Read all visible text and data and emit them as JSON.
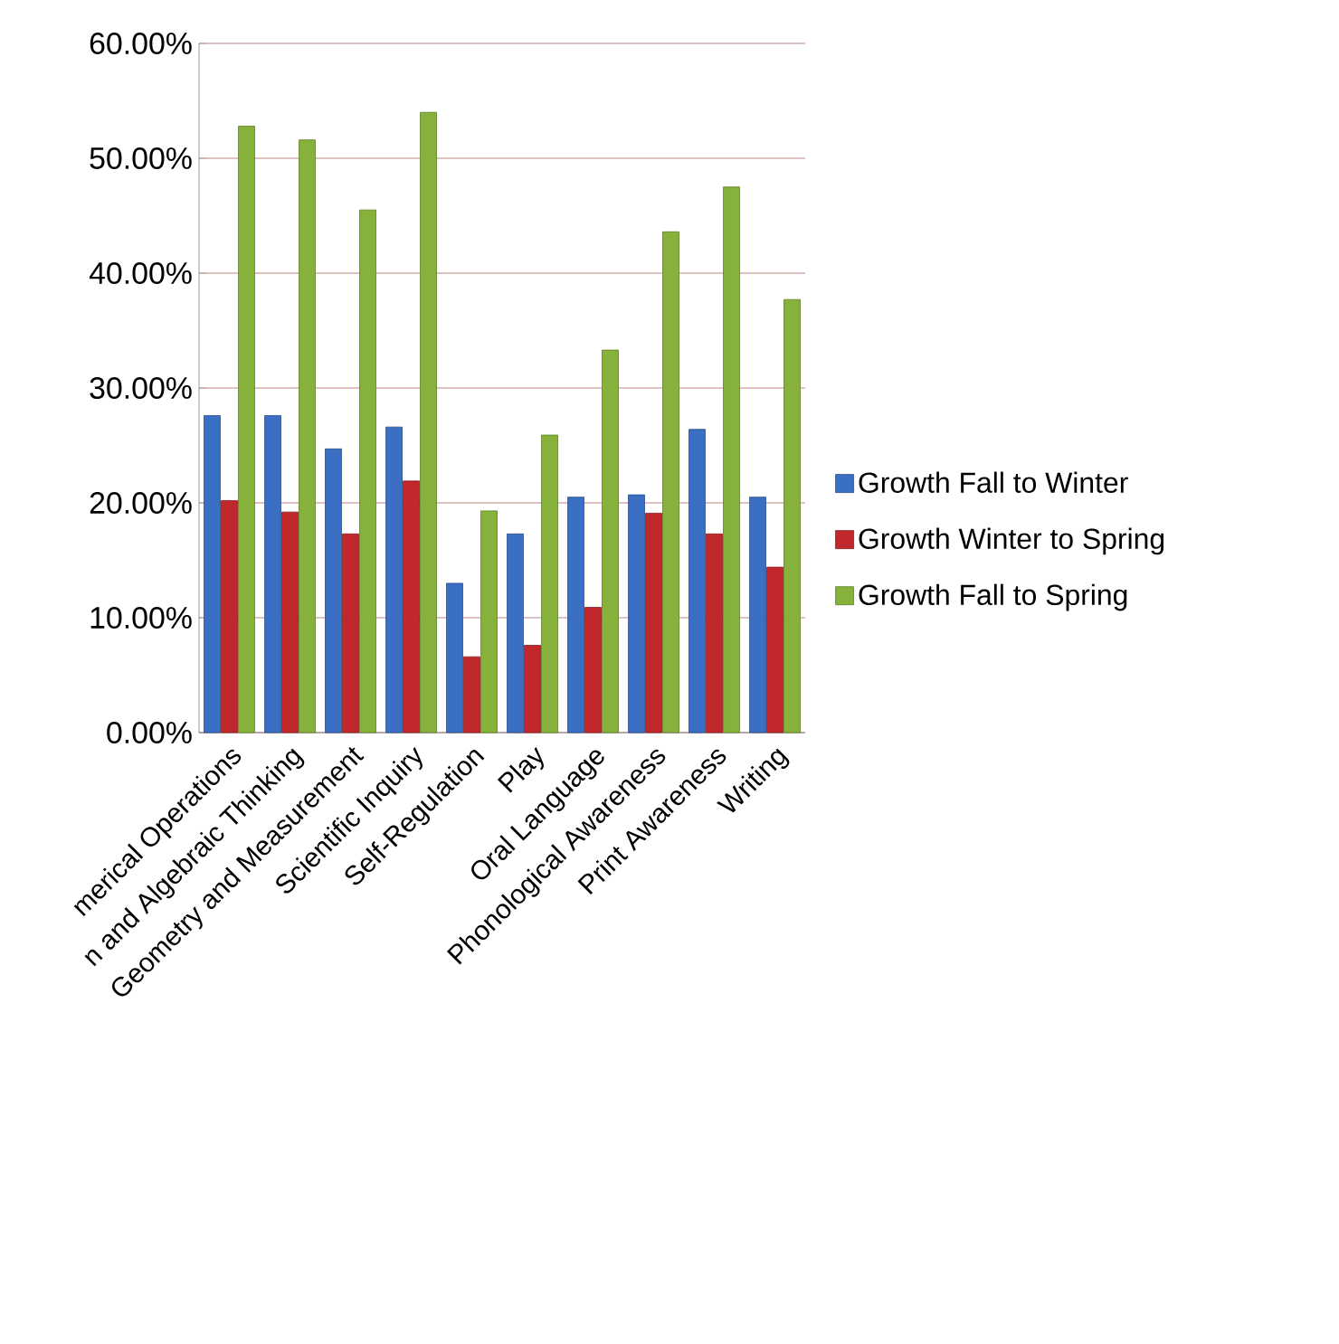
{
  "chart_data": {
    "type": "bar",
    "categories": [
      "merical Operations",
      "n and Algebraic Thinking",
      "Geometry and Measurement",
      "Scientific Inquiry",
      "Self-Regulation",
      "Play",
      "Oral Language",
      "Phonological Awareness",
      "Print Awareness",
      "Writing"
    ],
    "series": [
      {
        "name": "Growth Fall to Winter",
        "color": "#3a6fc4",
        "values": [
          27.6,
          27.6,
          24.7,
          26.6,
          13.0,
          17.3,
          20.5,
          20.7,
          26.4,
          20.5
        ]
      },
      {
        "name": "Growth Winter to Spring",
        "color": "#c0282c",
        "values": [
          20.2,
          19.2,
          17.3,
          21.9,
          6.6,
          7.6,
          10.9,
          19.1,
          17.3,
          14.4
        ]
      },
      {
        "name": "Growth Fall to Spring",
        "color": "#86b13a",
        "values": [
          52.8,
          51.6,
          45.5,
          54.0,
          19.3,
          25.9,
          33.3,
          43.6,
          47.5,
          37.7
        ]
      }
    ],
    "ylim": [
      0,
      60
    ],
    "yticks": [
      {
        "value": 0,
        "label": "0.00%"
      },
      {
        "value": 10,
        "label": "10.00%"
      },
      {
        "value": 20,
        "label": "20.00%"
      },
      {
        "value": 30,
        "label": "30.00%"
      },
      {
        "value": 40,
        "label": "40.00%"
      },
      {
        "value": 50,
        "label": "50.00%"
      },
      {
        "value": 60,
        "label": "60.00%"
      }
    ],
    "grid": "y",
    "legend": "right"
  }
}
